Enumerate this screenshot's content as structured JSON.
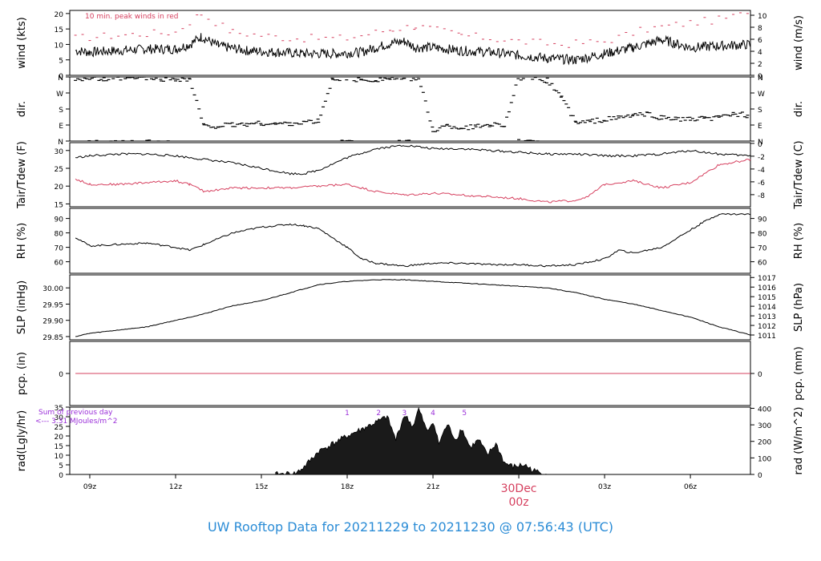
{
  "footer_title": "UW Rooftop Data for 20211229  to  20211230 @ 07:56:43  (UTC)",
  "colors": {
    "frame": "#000000",
    "red": "#d6405f",
    "purple": "#9b30d9",
    "footer": "#2b8cd6"
  },
  "x_axis": {
    "ticks": [
      "09z",
      "12z",
      "15z",
      "18z",
      "21z",
      "00z",
      "03z",
      "06z"
    ],
    "date_label": "30Dec",
    "date_tick_label": "00z"
  },
  "chart_data": [
    {
      "type": "line",
      "title": "",
      "ylabel": "wind (kts)",
      "ylabel_right": "wind (m/s)",
      "ticks_left": [
        0,
        5,
        10,
        15,
        20
      ],
      "ticks_right": [
        0,
        2,
        4,
        6,
        8,
        10
      ],
      "ylim": [
        0,
        21
      ],
      "annotation": "10 min. peak winds in red",
      "series": [
        {
          "color": "black",
          "x": [
            8.5,
            9,
            10,
            11,
            12,
            12.5,
            12.9,
            13.5,
            14.5,
            15.5,
            16.5,
            17.5,
            18.5,
            19,
            19.6,
            20,
            20.4,
            21,
            22,
            23,
            24,
            25,
            26,
            27,
            28,
            29,
            30,
            31,
            32.1
          ],
          "y": [
            8,
            7.5,
            8,
            8.5,
            8.5,
            10,
            12.5,
            9.5,
            8,
            7.5,
            7,
            7,
            7.5,
            9,
            10.5,
            11,
            9,
            9,
            8,
            7.5,
            6.5,
            5.5,
            5,
            7,
            9,
            11.5,
            9,
            9.5,
            10
          ]
        },
        {
          "color": "red",
          "x": [
            8.5,
            10,
            12,
            12.9,
            14,
            16,
            18,
            19.6,
            20.4,
            22,
            24,
            25.5,
            27,
            28.5,
            30,
            31,
            32
          ],
          "y": [
            12,
            13,
            14,
            20,
            14,
            12,
            12,
            15,
            16,
            13,
            11,
            10,
            11,
            15,
            17,
            18,
            20
          ]
        }
      ]
    },
    {
      "type": "scatter",
      "title": "",
      "ylabel": "dir.",
      "ylabel_right": "dir.",
      "ticks_left": [
        "N",
        "E",
        "S",
        "W",
        "N"
      ],
      "ticks_right": [
        "N",
        "E",
        "S",
        "W",
        "N"
      ],
      "ylim": [
        0,
        360
      ],
      "series": [
        {
          "color": "black",
          "x": [
            8.5,
            9,
            9.5,
            10,
            10.5,
            11,
            11.5,
            12,
            12.5,
            13,
            13.5,
            14,
            14.5,
            15,
            15.5,
            16,
            16.5,
            17,
            17.5,
            18,
            18.5,
            19,
            19.5,
            20,
            20.5,
            21,
            21.5,
            22,
            22.5,
            23,
            23.5,
            24,
            24.5,
            25,
            25.5,
            26,
            26.5,
            27,
            27.5,
            28,
            28.5,
            29,
            29.5,
            30,
            30.5,
            31,
            31.5,
            32
          ],
          "y": [
            350,
            355,
            345,
            350,
            352,
            355,
            348,
            350,
            345,
            80,
            85,
            90,
            95,
            100,
            95,
            100,
            105,
            110,
            350,
            355,
            340,
            345,
            352,
            350,
            355,
            60,
            85,
            75,
            80,
            95,
            90,
            355,
            350,
            340,
            250,
            100,
            110,
            120,
            130,
            145,
            150,
            130,
            125,
            120,
            125,
            130,
            155,
            145
          ]
        }
      ]
    },
    {
      "type": "line",
      "title": "",
      "ylabel": "Tair/Tdew (F)",
      "ylabel_right": "Tair/Tdew (C)",
      "ticks_left": [
        15,
        20,
        25,
        30
      ],
      "ticks_right": [
        -8,
        -6,
        -4,
        -2,
        0
      ],
      "ylim": [
        14.2,
        32.2
      ],
      "series": [
        {
          "color": "black",
          "x": [
            8.5,
            9,
            10,
            11,
            12,
            13,
            14,
            15,
            16,
            16.5,
            17,
            18,
            19,
            20,
            21,
            22,
            23,
            24,
            25,
            26,
            27,
            28,
            29,
            30,
            31,
            32.1
          ],
          "y": [
            28,
            28.5,
            29,
            29,
            28.5,
            27.5,
            26.5,
            25,
            23.5,
            23.5,
            24.5,
            28,
            30.5,
            31.5,
            30.5,
            30.5,
            30,
            29.5,
            29,
            29,
            28.5,
            28.5,
            29,
            30,
            29,
            28.5
          ]
        },
        {
          "color": "red",
          "x": [
            8.5,
            9,
            10,
            11,
            12,
            12.5,
            13,
            14,
            15,
            16,
            17,
            18,
            19,
            20,
            21,
            22,
            23,
            24,
            25,
            26,
            26.5,
            27,
            28,
            29,
            30,
            31,
            32.1
          ],
          "y": [
            22,
            20.5,
            20.5,
            21,
            21.5,
            20.5,
            18.5,
            19.5,
            19.5,
            19.5,
            20,
            20.5,
            18.5,
            17.5,
            18,
            17.5,
            17,
            16.5,
            15.5,
            16,
            17.5,
            20.5,
            21.5,
            19.5,
            21,
            26,
            27.5
          ]
        }
      ]
    },
    {
      "type": "line",
      "title": "",
      "ylabel": "RH (%)",
      "ylabel_right": "RH (%)",
      "ticks_left": [
        60,
        70,
        80,
        90
      ],
      "ticks_right": [
        60,
        70,
        80,
        90
      ],
      "ylim": [
        52,
        97
      ],
      "series": [
        {
          "color": "black",
          "x": [
            8.5,
            9,
            10,
            11,
            12,
            12.5,
            13,
            14,
            15,
            16,
            16.5,
            17,
            18,
            18.5,
            19,
            20,
            21,
            22,
            23,
            24,
            25,
            26,
            27,
            27.5,
            28,
            29,
            30,
            30.5,
            31,
            32.1
          ],
          "y": [
            77,
            71,
            72,
            73,
            70,
            68,
            72,
            80,
            84,
            86,
            85,
            83,
            70,
            62,
            59,
            57,
            59,
            59,
            58,
            58,
            57,
            58,
            62,
            68,
            66,
            70,
            82,
            88,
            93,
            93
          ]
        }
      ]
    },
    {
      "type": "line",
      "title": "",
      "ylabel": "SLP (inHg)",
      "ylabel_right": "SLP (hPa)",
      "ticks_left": [
        "29.85",
        "29.90",
        "29.95",
        "30.00"
      ],
      "ticks_right": [
        1011,
        1012,
        1013,
        1014,
        1015,
        1016,
        1017
      ],
      "ylim": [
        29.84,
        30.04
      ],
      "series": [
        {
          "color": "black",
          "x": [
            8.5,
            9,
            10,
            11,
            12,
            13,
            14,
            15,
            16,
            17,
            18,
            19,
            20,
            21,
            22,
            23,
            24,
            25,
            26,
            27,
            28,
            29,
            30,
            31,
            32.1
          ],
          "y": [
            29.85,
            29.86,
            29.87,
            29.88,
            29.9,
            29.92,
            29.945,
            29.96,
            29.985,
            30.01,
            30.02,
            30.025,
            30.025,
            30.02,
            30.015,
            30.01,
            30.005,
            30.0,
            29.985,
            29.965,
            29.95,
            29.93,
            29.91,
            29.88,
            29.855
          ]
        }
      ]
    },
    {
      "type": "line",
      "title": "",
      "ylabel": "pcp. (in)",
      "ylabel_right": "pcp. (mm)",
      "ticks_left": [
        0
      ],
      "ticks_right": [
        0
      ],
      "ylim": [
        -1,
        1
      ],
      "series": [
        {
          "color": "red",
          "x": [
            8.5,
            32.1
          ],
          "y": [
            0,
            0
          ]
        }
      ]
    },
    {
      "type": "area",
      "title": "",
      "ylabel": "rad(Lgly/hr)",
      "ylabel_right": "rad (W/m^2)",
      "ticks_left": [
        0,
        5,
        10,
        15,
        20,
        25,
        30,
        35
      ],
      "ticks_right": [
        0,
        100,
        200,
        300,
        400
      ],
      "ylim": [
        0,
        35
      ],
      "annotations": [
        "Sum of previous day",
        "<--- 3.31 MJoules/m^2"
      ],
      "hour_marks": [
        "1",
        "2",
        "3",
        "4",
        "5"
      ],
      "series": [
        {
          "color": "black",
          "x": [
            15.5,
            16.2,
            16.5,
            17,
            18,
            19,
            19.4,
            19.7,
            20,
            20.3,
            20.5,
            20.8,
            21,
            21.2,
            21.5,
            21.8,
            22,
            22.3,
            22.6,
            22.9,
            23.2,
            23.5,
            23.8,
            24.2,
            24.5,
            25
          ],
          "y": [
            0,
            0.5,
            4,
            12,
            20,
            27,
            30,
            18,
            31,
            25,
            34,
            22,
            28,
            16,
            26,
            18,
            24,
            14,
            18,
            10,
            16,
            6,
            4,
            5,
            2,
            0
          ]
        }
      ]
    }
  ]
}
